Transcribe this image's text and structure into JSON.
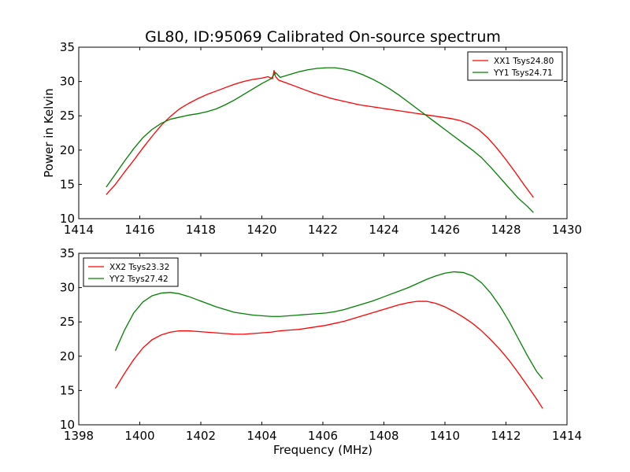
{
  "chart_data": [
    {
      "type": "line",
      "title": "GL80, ID:95069 Calibrated On-source spectrum",
      "xlabel": "",
      "ylabel": "Power in Kelvin",
      "xlim": [
        1414,
        1430
      ],
      "ylim": [
        10,
        35
      ],
      "xticks": [
        1414,
        1416,
        1418,
        1420,
        1422,
        1424,
        1426,
        1428,
        1430
      ],
      "yticks": [
        10,
        15,
        20,
        25,
        30,
        35
      ],
      "legend_position": "top-right",
      "series": [
        {
          "name": "XX1 Tsys24.80",
          "color": "#ff0000",
          "x": [
            1414.9,
            1415.2,
            1415.5,
            1415.8,
            1416.1,
            1416.4,
            1416.7,
            1417.0,
            1417.3,
            1417.6,
            1417.9,
            1418.2,
            1418.5,
            1418.8,
            1419.1,
            1419.4,
            1419.7,
            1420.0,
            1420.2,
            1420.35,
            1420.4,
            1420.45,
            1420.55,
            1420.8,
            1421.1,
            1421.4,
            1421.7,
            1422.0,
            1422.3,
            1422.6,
            1422.9,
            1423.2,
            1423.5,
            1423.8,
            1424.1,
            1424.4,
            1424.7,
            1425.0,
            1425.3,
            1425.6,
            1425.9,
            1426.2,
            1426.5,
            1426.8,
            1427.1,
            1427.4,
            1427.7,
            1428.0,
            1428.3,
            1428.6,
            1428.9
          ],
          "y": [
            13.5,
            15.0,
            16.8,
            18.5,
            20.3,
            22.0,
            23.6,
            24.9,
            26.0,
            26.8,
            27.5,
            28.1,
            28.6,
            29.1,
            29.6,
            30.0,
            30.3,
            30.5,
            30.7,
            30.4,
            31.6,
            30.7,
            30.2,
            29.8,
            29.3,
            28.8,
            28.3,
            27.9,
            27.5,
            27.2,
            26.9,
            26.6,
            26.4,
            26.2,
            26.0,
            25.8,
            25.6,
            25.4,
            25.2,
            25.0,
            24.8,
            24.6,
            24.3,
            23.8,
            23.0,
            21.8,
            20.3,
            18.6,
            16.8,
            14.9,
            13.1
          ]
        },
        {
          "name": "YY1 Tsys24.71",
          "color": "#008000",
          "x": [
            1414.9,
            1415.2,
            1415.5,
            1415.8,
            1416.1,
            1416.4,
            1416.7,
            1417.0,
            1417.3,
            1417.6,
            1417.9,
            1418.2,
            1418.5,
            1418.8,
            1419.1,
            1419.4,
            1419.7,
            1420.0,
            1420.3,
            1420.45,
            1420.6,
            1420.9,
            1421.2,
            1421.5,
            1421.8,
            1422.1,
            1422.4,
            1422.7,
            1423.0,
            1423.3,
            1423.6,
            1423.9,
            1424.2,
            1424.5,
            1424.8,
            1425.1,
            1425.4,
            1425.7,
            1426.0,
            1426.3,
            1426.6,
            1426.9,
            1427.2,
            1427.5,
            1427.8,
            1428.1,
            1428.4,
            1428.7,
            1428.9
          ],
          "y": [
            14.6,
            16.5,
            18.4,
            20.2,
            21.8,
            23.0,
            23.9,
            24.5,
            24.8,
            25.1,
            25.3,
            25.6,
            26.0,
            26.6,
            27.3,
            28.1,
            28.9,
            29.7,
            30.4,
            31.3,
            30.6,
            31.0,
            31.4,
            31.7,
            31.9,
            32.0,
            32.0,
            31.8,
            31.5,
            31.0,
            30.4,
            29.7,
            28.9,
            28.0,
            27.0,
            26.0,
            25.0,
            24.0,
            23.0,
            22.0,
            21.0,
            20.0,
            18.9,
            17.5,
            16.0,
            14.5,
            13.0,
            11.8,
            10.9
          ]
        }
      ]
    },
    {
      "type": "line",
      "title": "",
      "xlabel": "Frequency (MHz)",
      "ylabel": "",
      "xlim": [
        1398,
        1414
      ],
      "ylim": [
        10,
        35
      ],
      "xticks": [
        1398,
        1400,
        1402,
        1404,
        1406,
        1408,
        1410,
        1412,
        1414
      ],
      "yticks": [
        10,
        15,
        20,
        25,
        30,
        35
      ],
      "legend_position": "top-left",
      "series": [
        {
          "name": "XX2 Tsys23.32",
          "color": "#ff0000",
          "x": [
            1399.2,
            1399.5,
            1399.8,
            1400.1,
            1400.4,
            1400.7,
            1401.0,
            1401.3,
            1401.6,
            1401.9,
            1402.2,
            1402.5,
            1402.8,
            1403.1,
            1403.4,
            1403.7,
            1404.0,
            1404.3,
            1404.6,
            1404.9,
            1405.2,
            1405.5,
            1405.8,
            1406.1,
            1406.4,
            1406.7,
            1407.0,
            1407.3,
            1407.6,
            1407.9,
            1408.2,
            1408.5,
            1408.8,
            1409.1,
            1409.4,
            1409.7,
            1410.0,
            1410.3,
            1410.6,
            1410.9,
            1411.2,
            1411.5,
            1411.8,
            1412.1,
            1412.4,
            1412.7,
            1413.0,
            1413.2
          ],
          "y": [
            15.3,
            17.5,
            19.5,
            21.2,
            22.4,
            23.1,
            23.5,
            23.7,
            23.7,
            23.6,
            23.5,
            23.4,
            23.3,
            23.2,
            23.2,
            23.3,
            23.4,
            23.5,
            23.7,
            23.8,
            23.9,
            24.1,
            24.3,
            24.5,
            24.8,
            25.1,
            25.5,
            25.9,
            26.3,
            26.7,
            27.1,
            27.5,
            27.8,
            28.0,
            28.0,
            27.7,
            27.2,
            26.5,
            25.7,
            24.8,
            23.7,
            22.4,
            21.0,
            19.4,
            17.6,
            15.7,
            13.8,
            12.4
          ]
        },
        {
          "name": "YY2 Tsys27.42",
          "color": "#008000",
          "x": [
            1399.2,
            1399.5,
            1399.8,
            1400.1,
            1400.4,
            1400.7,
            1401.0,
            1401.3,
            1401.6,
            1401.9,
            1402.2,
            1402.5,
            1402.8,
            1403.1,
            1403.4,
            1403.7,
            1404.0,
            1404.3,
            1404.6,
            1404.9,
            1405.2,
            1405.5,
            1405.8,
            1406.1,
            1406.4,
            1406.7,
            1407.0,
            1407.3,
            1407.6,
            1407.9,
            1408.2,
            1408.5,
            1408.8,
            1409.1,
            1409.4,
            1409.7,
            1410.0,
            1410.3,
            1410.6,
            1410.9,
            1411.2,
            1411.5,
            1411.8,
            1412.1,
            1412.4,
            1412.7,
            1413.0,
            1413.2
          ],
          "y": [
            20.8,
            23.8,
            26.3,
            27.9,
            28.8,
            29.2,
            29.3,
            29.1,
            28.7,
            28.2,
            27.7,
            27.2,
            26.8,
            26.4,
            26.2,
            26.0,
            25.9,
            25.8,
            25.8,
            25.9,
            26.0,
            26.1,
            26.2,
            26.3,
            26.5,
            26.8,
            27.2,
            27.6,
            28.0,
            28.5,
            29.0,
            29.5,
            30.0,
            30.6,
            31.2,
            31.7,
            32.1,
            32.3,
            32.2,
            31.7,
            30.7,
            29.2,
            27.3,
            25.1,
            22.6,
            20.1,
            17.8,
            16.7
          ]
        }
      ]
    }
  ]
}
